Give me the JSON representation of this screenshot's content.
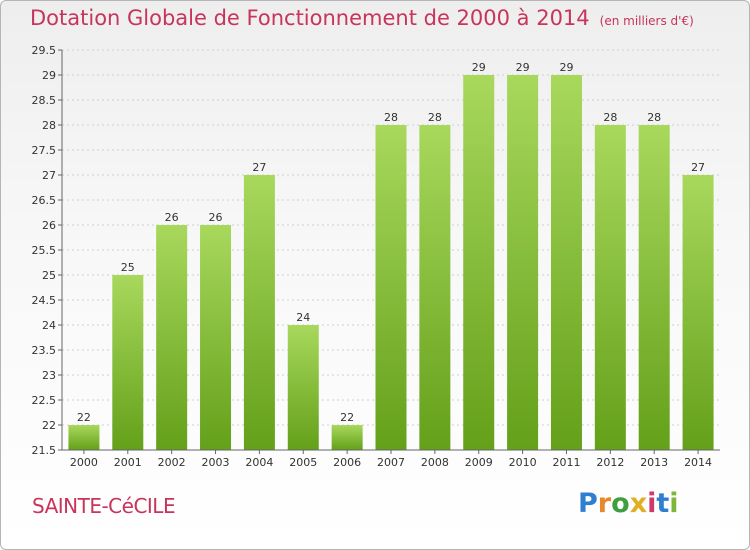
{
  "header": {
    "title": "Dotation Globale de Fonctionnement de 2000 à 2014",
    "unit": "(en milliers d'€)"
  },
  "footer": {
    "commune": "SAINTE-CéCILE",
    "logo_letters": [
      "P",
      "r",
      "o",
      "x",
      "i",
      "t",
      "i"
    ],
    "logo_colors": [
      "#2f7fd0",
      "#e8872c",
      "#3f9f3f",
      "#e0b020",
      "#d03a6a",
      "#2f7fd0",
      "#7fb53a"
    ]
  },
  "colors": {
    "title": "#c8345b",
    "bar_top": "#a8d85c",
    "bar_bottom": "#64a01a",
    "grid": "#cfcfcf"
  },
  "chart_data": {
    "type": "bar",
    "title": "Dotation Globale de Fonctionnement de 2000 à 2014",
    "subtitle": "(en milliers d'€)",
    "xlabel": "",
    "ylabel": "",
    "categories": [
      "2000",
      "2001",
      "2002",
      "2003",
      "2004",
      "2005",
      "2006",
      "2007",
      "2008",
      "2009",
      "2010",
      "2011",
      "2012",
      "2013",
      "2014"
    ],
    "values": [
      22,
      25,
      26,
      26,
      27,
      24,
      22,
      28,
      28,
      29,
      29,
      29,
      28,
      28,
      27
    ],
    "data_labels": [
      "22",
      "25",
      "26",
      "26",
      "27",
      "24",
      "22",
      "28",
      "28",
      "29",
      "29",
      "29",
      "28",
      "28",
      "27"
    ],
    "ylim": [
      21.5,
      29.5
    ],
    "yticks": [
      "21.5",
      "22",
      "22.5",
      "23",
      "23.5",
      "24",
      "24.5",
      "25",
      "25.5",
      "26",
      "26.5",
      "27",
      "27.5",
      "28",
      "28.5",
      "29",
      "29.5"
    ],
    "grid": true,
    "legend": "none"
  }
}
